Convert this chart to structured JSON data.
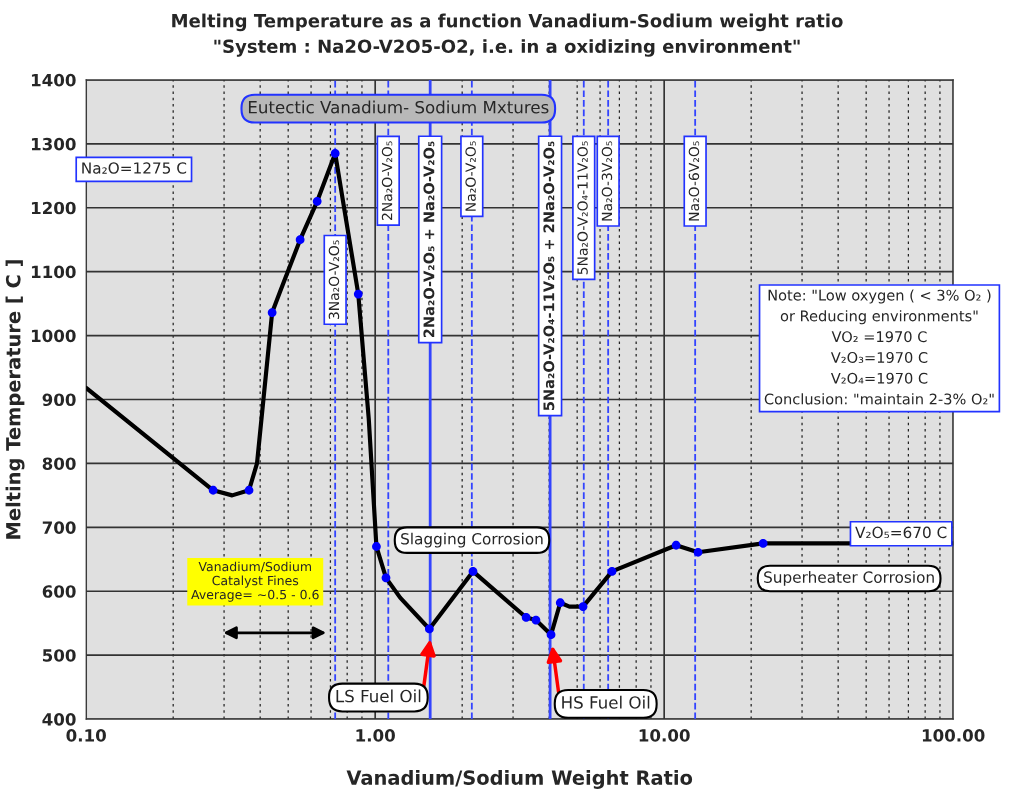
{
  "chart_data": {
    "type": "line",
    "title": "Melting Temperature as a function Vanadium-Sodium weight ratio",
    "subtitle": "\"System : Na2O-V2O5-O2, i.e. in a oxidizing environment\"",
    "xlabel": "Vanadium/Sodium Weight Ratio",
    "ylabel": "Melting Temperature [ C ]",
    "log": "x",
    "xlim": [
      0.1,
      100
    ],
    "xticks": [
      {
        "value": 0.1,
        "label": "0.10"
      },
      {
        "value": 1,
        "label": "1.00"
      },
      {
        "value": 10,
        "label": "10.00"
      },
      {
        "value": 100,
        "label": "100.00"
      }
    ],
    "ylim": [
      400,
      1400
    ],
    "yticks": [
      400,
      500,
      600,
      700,
      800,
      900,
      1000,
      1100,
      1200,
      1300,
      1400
    ],
    "grid": true,
    "legend": false,
    "series": [
      {
        "color": "#000000",
        "marker": "none",
        "line_style": "solid",
        "x": [
          0.1,
          0.275,
          0.32,
          0.366,
          0.39,
          0.44,
          0.47,
          0.55,
          0.63,
          0.727,
          0.874,
          0.95,
          1.01,
          1.09,
          1.22,
          1.54,
          2.18,
          3.33,
          3.6,
          4.06,
          4.37,
          4.7,
          5.24,
          6.6,
          11.0,
          13.1,
          22.0,
          100
        ],
        "values": [
          918,
          758,
          750,
          758,
          800,
          1036,
          1070,
          1150,
          1210,
          1285,
          1065,
          870,
          670,
          621,
          590,
          541,
          631,
          559,
          555,
          532,
          582,
          576,
          576,
          631,
          672,
          661,
          675,
          675
        ]
      },
      {
        "type": "scatter",
        "color": "#0000ff",
        "marker": "circle",
        "x": [
          0.275,
          0.366,
          0.44,
          0.55,
          0.63,
          0.727,
          0.874,
          1.01,
          1.09,
          1.54,
          2.18,
          3.33,
          3.6,
          4.06,
          4.37,
          5.24,
          6.6,
          11.0,
          13.1,
          22.0
        ],
        "values": [
          758,
          758,
          1036,
          1150,
          1210,
          1285,
          1065,
          670,
          621,
          541,
          631,
          559,
          555,
          532,
          582,
          576,
          631,
          672,
          661,
          675
        ]
      }
    ],
    "ref_lines": [
      {
        "axis": "x",
        "value": 0.727,
        "label": "3Na₂O-V₂O₅",
        "color": "#3344ff",
        "line_style": "dashed"
      },
      {
        "axis": "x",
        "value": 1.11,
        "label": "2Na₂O-V₂O₅",
        "color": "#3344ff",
        "line_style": "dashed"
      },
      {
        "axis": "x",
        "value": 1.55,
        "label": "2Na₂O-V₂O₅ + Na₂O-V₂O₅",
        "color": "#3344ff",
        "line_style": "solid"
      },
      {
        "axis": "x",
        "value": 2.16,
        "label": "Na₂O-V₂O₅",
        "color": "#3344ff",
        "line_style": "dashed"
      },
      {
        "axis": "x",
        "value": 4.03,
        "label": "5Na₂O-V₂O₄-11V₂O₅ + 2Na₂O-V₂O₅",
        "color": "#3344ff",
        "line_style": "solid"
      },
      {
        "axis": "x",
        "value": 5.27,
        "label": "5Na₂O-V₂O₄-11V₂O₅",
        "color": "#3344ff",
        "line_style": "dashed"
      },
      {
        "axis": "x",
        "value": 6.4,
        "label": "Na₂O-3V₂O₅",
        "color": "#3344ff",
        "line_style": "dashed"
      },
      {
        "axis": "x",
        "value": 12.8,
        "label": "Na₂O-6V₂O₅",
        "color": "#3344ff",
        "line_style": "dashed"
      }
    ],
    "annotations": [
      "Eutectic Vanadium- Sodium Mxtures",
      "Na₂O=1275 C",
      "V₂O₅=670 C",
      "Note: \"Low oxygen ( < 3% O₂ )\nor Reducing environments\"\nVO₂ =1970 C\nV₂O₃=1970 C\nV₂O₄=1970 C\nConclusion: \"maintain 2-3% O₂\"",
      "Vanadium/Sodium\nCatalyst Fines\nAverage= ~0.5 - 0.6",
      "Slagging Corrosion",
      "Superheater Corrosion",
      {
        "text": "LS Fuel Oil",
        "x": 1.55,
        "y": 525
      },
      {
        "text": "HS Fuel Oil",
        "x": 4.1,
        "y": 515
      }
    ]
  }
}
